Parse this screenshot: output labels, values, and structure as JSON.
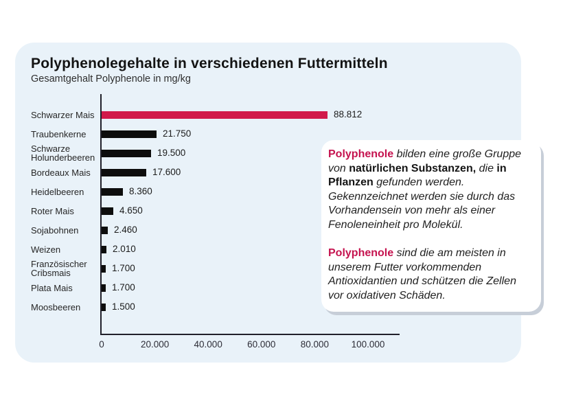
{
  "chart_data": {
    "type": "bar",
    "orientation": "horizontal",
    "title": "Polyphenolegehalte in verschiedenen Futtermitteln",
    "subtitle": "Gesamtgehalt Polyphenole in mg/kg",
    "categories": [
      "Schwarzer Mais",
      "Traubenkerne",
      "Schwarze Holunderbeeren",
      "Bordeaux Mais",
      "Heidelbeeren",
      "Roter Mais",
      "Sojabohnen",
      "Weizen",
      "Französischer Cribsmais",
      "Plata Mais",
      "Moosbeeren"
    ],
    "values": [
      88812,
      21750,
      19500,
      17600,
      8360,
      4650,
      2460,
      2010,
      1700,
      1700,
      1500
    ],
    "value_labels": [
      "88.812",
      "21.750",
      "19.500",
      "17.600",
      "8.360",
      "4.650",
      "2.460",
      "2.010",
      "1.700",
      "1.700",
      "1.500"
    ],
    "xlabel": "",
    "ylabel": "",
    "xlim": [
      0,
      100000
    ],
    "x_tick_values": [
      0,
      20000,
      40000,
      60000,
      80000,
      100000
    ],
    "x_tick_labels": [
      "0",
      "20.000",
      "40.000",
      "60.000",
      "80.000",
      "100.000"
    ],
    "grid": false,
    "legend": "none",
    "highlight_index": 0,
    "highlight_color": "#d11a4b",
    "bar_color": "#0d0d0d"
  },
  "infobox": {
    "brand_color": "#c5134f",
    "paragraphs": [
      {
        "segments": [
          {
            "text": "Polyphenole",
            "style": "brand"
          },
          {
            "text": " bilden eine große Gruppe von ",
            "style": "italic"
          },
          {
            "text": "natürlichen Substanzen,",
            "style": "bold"
          },
          {
            "text": " die ",
            "style": "italic"
          },
          {
            "text": "in Pflanzen",
            "style": "bold"
          },
          {
            "text": " gefunden werden. Gekennzeichnet werden sie durch das Vorhandensein von mehr als einer Fenoleneinheit pro Molekül.",
            "style": "italic"
          }
        ]
      },
      {
        "segments": [
          {
            "text": "Polyphenole",
            "style": "brand"
          },
          {
            "text": " sind die am meisten in unserem Futter vorkommenden Antioxidantien und schützen die Zellen vor oxidativen Schäden.",
            "style": "italic"
          }
        ]
      }
    ]
  },
  "colors": {
    "page_bg": "#ffffff",
    "card_bg": "#e9f2f9",
    "axis": "#20202a",
    "infobox_bg": "#ffffff",
    "infobox_shadow": "#c7ced8"
  }
}
